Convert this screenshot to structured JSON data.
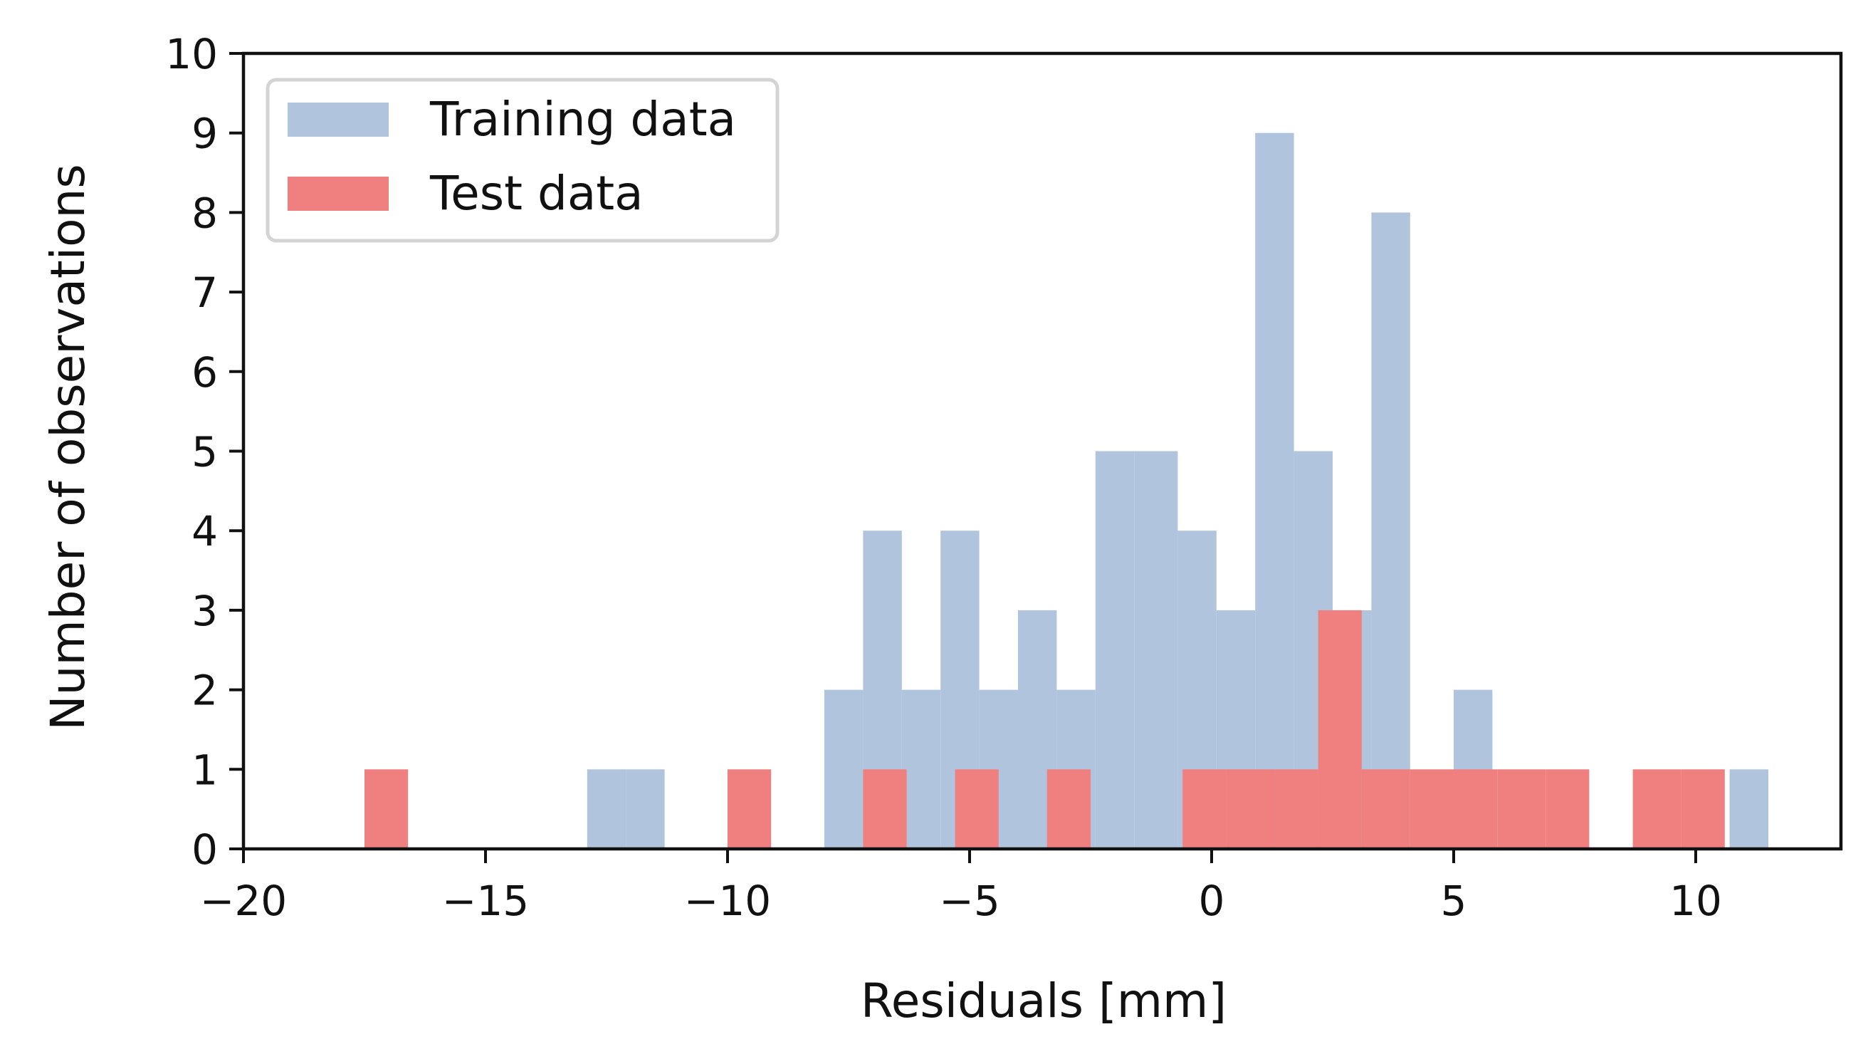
{
  "chart_data": {
    "type": "histogram",
    "title": "",
    "xlabel": "Residuals [mm]",
    "ylabel": "Number of observations",
    "xlim": [
      -20,
      13
    ],
    "ylim": [
      0,
      10
    ],
    "xticks": [
      -20,
      -15,
      -10,
      -5,
      0,
      5,
      10
    ],
    "xtick_labels": [
      "−20",
      "−15",
      "−10",
      "−5",
      "0",
      "5",
      "10"
    ],
    "yticks": [
      0,
      1,
      2,
      3,
      4,
      5,
      6,
      7,
      8,
      9,
      10
    ],
    "ytick_labels": [
      "0",
      "1",
      "2",
      "3",
      "4",
      "5",
      "6",
      "7",
      "8",
      "9",
      "10"
    ],
    "grid": false,
    "legend_position": "top-left",
    "series": [
      {
        "name": "Training data",
        "color": "#b0c4de",
        "bins": [
          {
            "x0": -12.9,
            "x1": -12.1,
            "count": 1
          },
          {
            "x0": -12.1,
            "x1": -11.3,
            "count": 1
          },
          {
            "x0": -8.0,
            "x1": -7.2,
            "count": 2
          },
          {
            "x0": -7.2,
            "x1": -6.4,
            "count": 4
          },
          {
            "x0": -6.4,
            "x1": -5.6,
            "count": 2
          },
          {
            "x0": -5.6,
            "x1": -4.8,
            "count": 4
          },
          {
            "x0": -4.8,
            "x1": -4.0,
            "count": 2
          },
          {
            "x0": -4.0,
            "x1": -3.2,
            "count": 3
          },
          {
            "x0": -3.2,
            "x1": -2.4,
            "count": 2
          },
          {
            "x0": -2.4,
            "x1": -1.6,
            "count": 5
          },
          {
            "x0": -1.6,
            "x1": -0.7,
            "count": 5
          },
          {
            "x0": -0.7,
            "x1": 0.1,
            "count": 4
          },
          {
            "x0": 0.1,
            "x1": 0.9,
            "count": 3
          },
          {
            "x0": 0.9,
            "x1": 1.7,
            "count": 9
          },
          {
            "x0": 1.7,
            "x1": 2.5,
            "count": 5
          },
          {
            "x0": 2.5,
            "x1": 3.3,
            "count": 3
          },
          {
            "x0": 3.3,
            "x1": 4.1,
            "count": 8
          },
          {
            "x0": 5.0,
            "x1": 5.8,
            "count": 2
          },
          {
            "x0": 10.7,
            "x1": 11.5,
            "count": 1
          }
        ]
      },
      {
        "name": "Test data",
        "color": "#f08080",
        "bins": [
          {
            "x0": -17.5,
            "x1": -16.6,
            "count": 1
          },
          {
            "x0": -10.0,
            "x1": -9.1,
            "count": 1
          },
          {
            "x0": -7.2,
            "x1": -6.3,
            "count": 1
          },
          {
            "x0": -5.3,
            "x1": -4.4,
            "count": 1
          },
          {
            "x0": -3.4,
            "x1": -2.5,
            "count": 1
          },
          {
            "x0": -0.6,
            "x1": 0.3,
            "count": 1
          },
          {
            "x0": 0.3,
            "x1": 1.3,
            "count": 1
          },
          {
            "x0": 1.3,
            "x1": 2.2,
            "count": 1
          },
          {
            "x0": 2.2,
            "x1": 3.1,
            "count": 3
          },
          {
            "x0": 3.1,
            "x1": 4.1,
            "count": 1
          },
          {
            "x0": 4.1,
            "x1": 5.0,
            "count": 1
          },
          {
            "x0": 5.0,
            "x1": 5.9,
            "count": 1
          },
          {
            "x0": 5.9,
            "x1": 6.9,
            "count": 1
          },
          {
            "x0": 6.9,
            "x1": 7.8,
            "count": 1
          },
          {
            "x0": 8.7,
            "x1": 9.7,
            "count": 1
          },
          {
            "x0": 9.7,
            "x1": 10.6,
            "count": 1
          }
        ]
      }
    ]
  }
}
